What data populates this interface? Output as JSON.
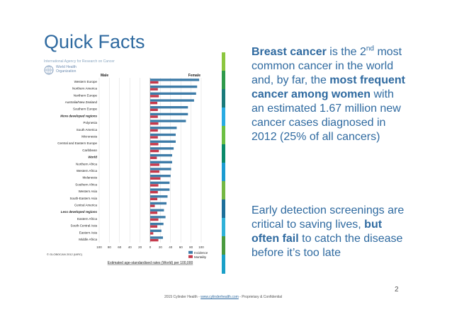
{
  "slide": {
    "title": "Quick Facts",
    "page_number": "2",
    "footer_prefix": "2015 Cylinder Health - ",
    "footer_link": "www.cylinderhealth.com",
    "footer_suffix": " - Proprietary & Confidential",
    "iarc_header": "International Agency for Research on Cancer",
    "who_line1": "World Health",
    "who_line2": "Organization"
  },
  "right_text": {
    "p1_bold1": "Breast cancer",
    "p1_t1": " is the 2",
    "p1_sup": "nd",
    "p1_t2": " most common cancer in the world and, by far, the ",
    "p1_bold2": "most frequent cancer among women",
    "p1_t3": " with an estimated 1.67 million new cancer cases diagnosed in 2012 (25% of all cancers)",
    "p2_t1": "Early detection screenings are critical to saving lives, ",
    "p2_bold": "but often fail",
    "p2_t2": " to catch the disease before it’s too late"
  },
  "colors": {
    "incidence": "#3e7ca8",
    "mortality": "#c53a4c",
    "title": "#2f6aa0",
    "strip": [
      "#8cc63f",
      "#2e9a4b",
      "#1a7a7a",
      "#29abe2",
      "#6cbf43",
      "#0a8a6a",
      "#1b9bd1",
      "#74b843",
      "#1d6f9a",
      "#2fb1d8",
      "#4a9a3f",
      "#1aa0c8"
    ]
  },
  "chart_data": {
    "type": "bar",
    "orientation": "horizontal",
    "header_left": "Male",
    "header_right": "Female",
    "categories": [
      "Western Europe",
      "Northern America",
      "Northern Europe",
      "Australia/New Zealand",
      "Southern Europe",
      "More developed regions",
      "Polynesia",
      "South America",
      "Micronesia",
      "Central and Eastern Europe",
      "Caribbean",
      "World",
      "Northern Africa",
      "Western Africa",
      "Melanesia",
      "Southern Africa",
      "Western Asia",
      "South-Eastern Asia",
      "Central America",
      "Less developed regions",
      "Eastern Africa",
      "South-Central Asia",
      "Eastern Asia",
      "Middle Africa"
    ],
    "bold_categories": [
      "More developed regions",
      "World",
      "Less developed regions"
    ],
    "series": [
      {
        "name": "Incidence",
        "values": [
          96,
          92,
          90,
          86,
          74,
          74,
          70,
          52,
          50,
          50,
          46,
          43,
          43,
          41,
          40,
          38,
          38,
          34,
          32,
          27,
          30,
          26,
          22,
          25
        ]
      },
      {
        "name": "Mortality",
        "values": [
          16,
          15,
          17,
          14,
          15,
          15,
          16,
          15,
          15,
          16,
          17,
          13,
          18,
          18,
          20,
          16,
          15,
          14,
          9,
          14,
          16,
          14,
          6,
          16
        ]
      }
    ],
    "xticks": [
      "100",
      "80",
      "60",
      "40",
      "20",
      "0",
      "20",
      "40",
      "60",
      "80",
      "100"
    ],
    "xlim": [
      -100,
      100
    ],
    "xlabel": "Estimated age-standardised rates (World) per 100,000",
    "legend": [
      "Incidence",
      "Mortality"
    ],
    "legend_position": "bottom-right",
    "source": "© GLOBOCAN 2012 (IARC)",
    "grid": true
  }
}
